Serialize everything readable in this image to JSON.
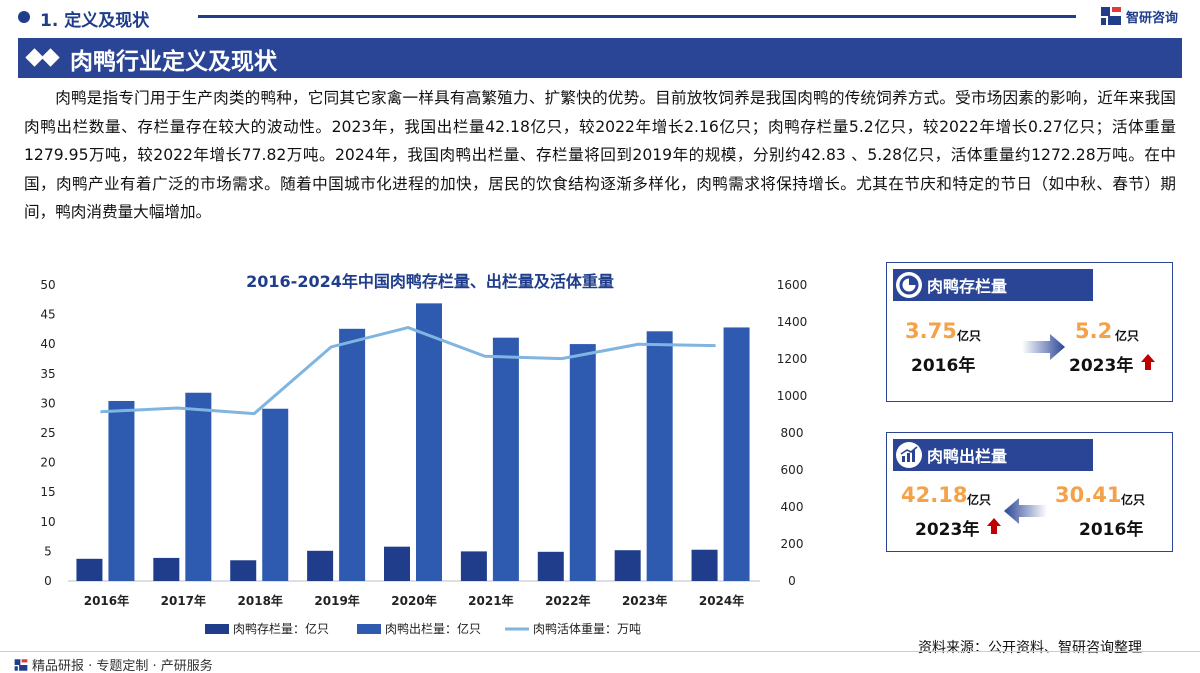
{
  "header": {
    "section_title": "1. 定义及现状",
    "brand_name": "智研咨询"
  },
  "banner": {
    "title": "肉鸭行业定义及现状"
  },
  "intro_text": "肉鸭是指专门用于生产肉类的鸭种，它同其它家禽一样具有高繁殖力、扩繁快的优势。目前放牧饲养是我国肉鸭的传统饲养方式。受市场因素的影响，近年来我国肉鸭出栏数量、存栏量存在较大的波动性。2023年，我国出栏量42.18亿只，较2022年增长2.16亿只；肉鸭存栏量5.2亿只，较2022年增长0.27亿只；活体重量1279.95万吨，较2022年增长77.82万吨。2024年，我国肉鸭出栏量、存栏量将回到2019年的规模，分别约42.83 、5.28亿只，活体重量约1272.28万吨。在中国，肉鸭产业有着广泛的市场需求。随着中国城市化进程的加快，居民的饮食结构逐渐多样化，肉鸭需求将保持增长。尤其在节庆和特定的节日（如中秋、春节）期间，鸭肉消费量大幅增加。",
  "chart_data": {
    "type": "bar",
    "title": "2016-2024年中国肉鸭存栏量、出栏量及活体重量",
    "categories": [
      "2016年",
      "2017年",
      "2018年",
      "2019年",
      "2020年",
      "2021年",
      "2022年",
      "2023年",
      "2024年"
    ],
    "series": [
      {
        "name": "肉鸭存栏量：亿只",
        "type": "bar",
        "axis": "left",
        "color": "#1f3d8a",
        "values": [
          3.75,
          3.9,
          3.5,
          5.1,
          5.8,
          5.0,
          4.93,
          5.2,
          5.28
        ]
      },
      {
        "name": "肉鸭出栏量：亿只",
        "type": "bar",
        "axis": "left",
        "color": "#2e5bb0",
        "values": [
          30.41,
          31.8,
          29.1,
          42.6,
          46.9,
          41.1,
          40.02,
          42.18,
          42.83
        ]
      },
      {
        "name": "肉鸭活体重量：万吨",
        "type": "line",
        "axis": "right",
        "color": "#7fb5e0",
        "values": [
          915,
          935,
          905,
          1265,
          1370,
          1215,
          1202.13,
          1279.95,
          1272.28
        ]
      }
    ],
    "left_ticks": [
      "0",
      "5",
      "10",
      "15",
      "20",
      "25",
      "30",
      "35",
      "40",
      "45",
      "50"
    ],
    "right_ticks": [
      "0",
      "200",
      "400",
      "600",
      "800",
      "1000",
      "1200",
      "1400",
      "1600"
    ],
    "ylim_left": [
      0,
      50
    ],
    "ylim_right": [
      0,
      1600
    ],
    "legend_position": "bottom",
    "grid": false
  },
  "cards": {
    "stock": {
      "title": "肉鸭存栏量",
      "from_value": "3.75",
      "from_unit": "亿只",
      "from_year": "2016年",
      "to_value": "5.2",
      "to_unit": "亿只",
      "to_year": "2023年",
      "icon": "pie-chart-icon"
    },
    "output": {
      "title": "肉鸭出栏量",
      "from_value": "30.41",
      "from_unit": "亿只",
      "from_year": "2016年",
      "to_value": "42.18",
      "to_unit": "亿只",
      "to_year": "2023年",
      "icon": "bar-chart-icon"
    },
    "accent_color": "#f4a24a",
    "up_arrow_color": "#c00000"
  },
  "source": "资料来源：公开资料、智研咨询整理",
  "footer": "精品研报 · 专题定制 · 产研服务"
}
